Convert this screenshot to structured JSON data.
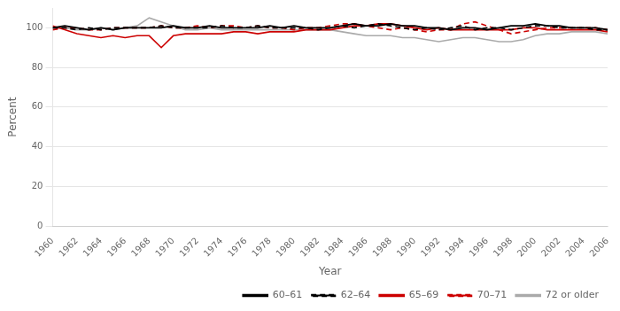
{
  "chart_data": {
    "type": "line",
    "x_label": "Year",
    "y_label": "Percent",
    "x": [
      1960,
      1961,
      1962,
      1963,
      1964,
      1965,
      1966,
      1967,
      1968,
      1969,
      1970,
      1971,
      1972,
      1973,
      1974,
      1975,
      1976,
      1977,
      1978,
      1979,
      1980,
      1981,
      1982,
      1983,
      1984,
      1985,
      1986,
      1987,
      1988,
      1989,
      1990,
      1991,
      1992,
      1993,
      1994,
      1995,
      1996,
      1997,
      1998,
      1999,
      2000,
      2001,
      2002,
      2003,
      2004,
      2005,
      2006
    ],
    "series": [
      {
        "name": "60–61",
        "color": "#000000",
        "line_style": "solid",
        "values": [
          100,
          101,
          100,
          99,
          100,
          99,
          100,
          100,
          100,
          100,
          101,
          100,
          100,
          101,
          100,
          100,
          100,
          100,
          101,
          100,
          101,
          100,
          100,
          100,
          101,
          102,
          101,
          101,
          102,
          101,
          101,
          100,
          100,
          99,
          100,
          100,
          99,
          100,
          101,
          101,
          102,
          101,
          101,
          100,
          100,
          100,
          99
        ]
      },
      {
        "name": "62–64",
        "color": "#000000",
        "line_style": "dashed",
        "values": [
          100,
          100,
          99,
          100,
          99,
          100,
          100,
          100,
          100,
          101,
          100,
          100,
          100,
          100,
          101,
          100,
          100,
          101,
          100,
          100,
          100,
          100,
          99,
          100,
          101,
          100,
          101,
          102,
          101,
          100,
          99,
          100,
          99,
          100,
          101,
          99,
          100,
          100,
          99,
          100,
          101,
          101,
          100,
          100,
          100,
          99,
          99
        ]
      },
      {
        "name": "65–69",
        "color": "#cc0000",
        "line_style": "solid",
        "values": [
          101,
          99,
          97,
          96,
          95,
          96,
          95,
          96,
          96,
          90,
          96,
          97,
          97,
          97,
          97,
          98,
          98,
          97,
          98,
          98,
          98,
          99,
          99,
          99,
          100,
          101,
          101,
          102,
          102,
          101,
          100,
          99,
          100,
          99,
          99,
          99,
          99,
          99,
          99,
          100,
          100,
          99,
          99,
          99,
          99,
          99,
          98
        ]
      },
      {
        "name": "70–71",
        "color": "#cc0000",
        "line_style": "dashed",
        "values": [
          99,
          100,
          100,
          99,
          99,
          100,
          100,
          100,
          100,
          101,
          100,
          100,
          101,
          100,
          101,
          101,
          100,
          101,
          100,
          100,
          99,
          100,
          100,
          101,
          102,
          102,
          101,
          100,
          99,
          100,
          99,
          98,
          99,
          99,
          102,
          103,
          101,
          99,
          97,
          98,
          99,
          100,
          100,
          100,
          100,
          100,
          99
        ]
      },
      {
        "name": "72 or older",
        "color": "#aaaaaa",
        "line_style": "solid",
        "values": [
          100,
          100,
          99,
          99,
          100,
          99,
          100,
          101,
          105,
          103,
          101,
          99,
          99,
          100,
          99,
          99,
          99,
          99,
          99,
          99,
          99,
          99,
          99,
          99,
          98,
          97,
          96,
          96,
          96,
          95,
          95,
          94,
          93,
          94,
          95,
          95,
          94,
          93,
          93,
          94,
          96,
          97,
          97,
          98,
          98,
          98,
          97
        ]
      }
    ],
    "xlim": [
      1960,
      2006
    ],
    "xticks": [
      1960,
      1962,
      1964,
      1966,
      1968,
      1970,
      1972,
      1974,
      1976,
      1978,
      1980,
      1982,
      1984,
      1986,
      1988,
      1990,
      1992,
      1994,
      1996,
      1998,
      2000,
      2002,
      2004,
      2006
    ],
    "ylim": [
      0,
      110
    ],
    "yticks": [
      0,
      20,
      40,
      60,
      80,
      100
    ],
    "grid": "y",
    "legend": "lower right"
  }
}
